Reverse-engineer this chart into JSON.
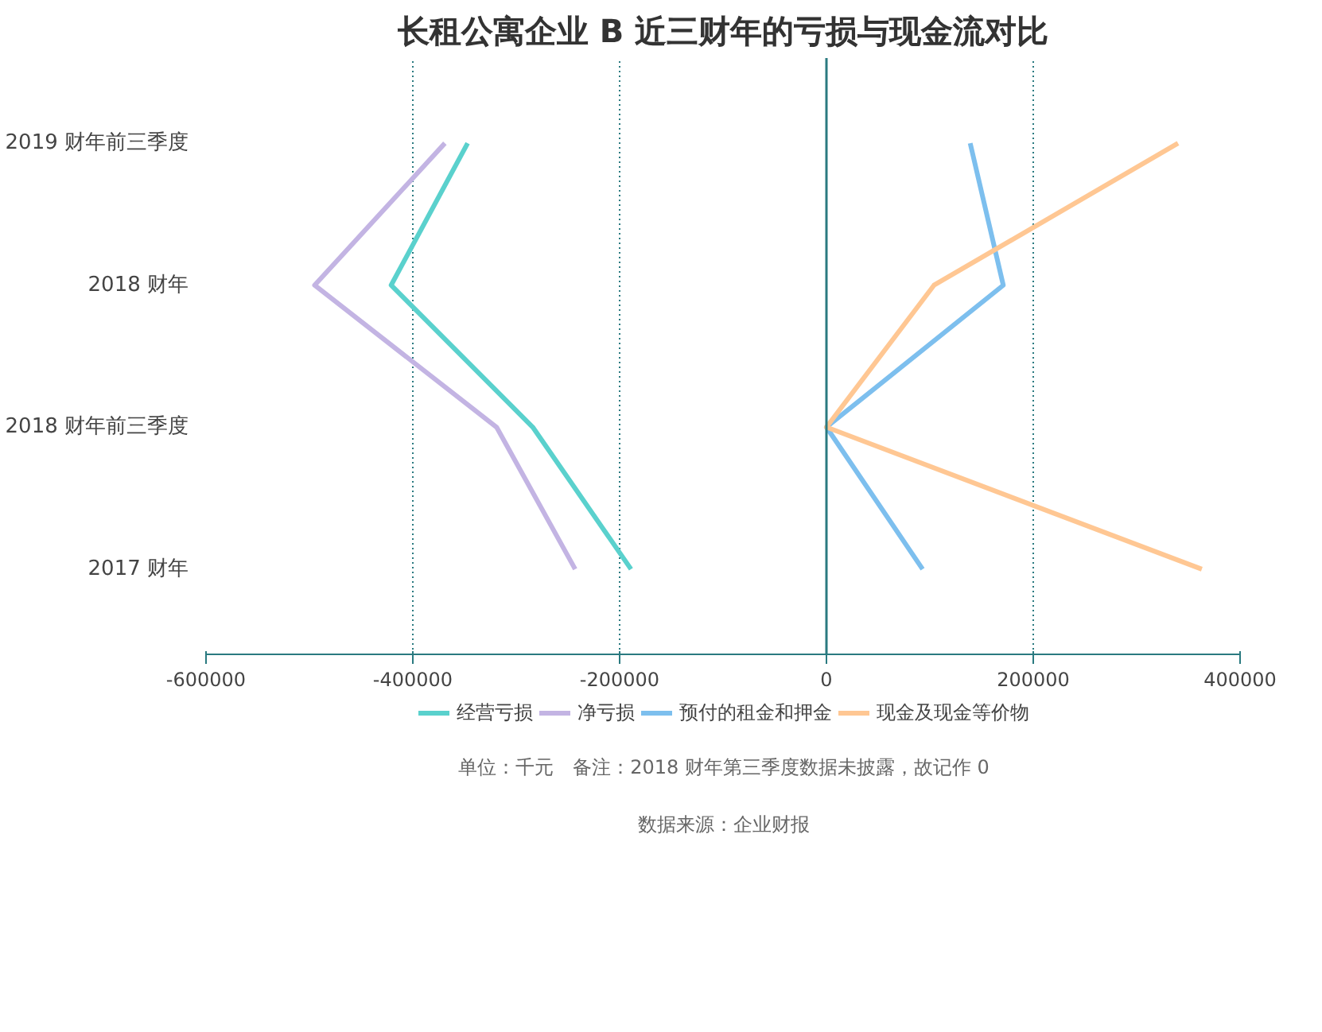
{
  "chart_data": {
    "type": "line",
    "orientation": "horizontal",
    "title": "长租公寓企业 B 近三财年的亏损与现金流对比",
    "categories": [
      "2019 财年前三季度",
      "2018 财年",
      "2018 财年前三季度",
      "2017 财年"
    ],
    "series": [
      {
        "name": "经营亏损",
        "color": "#5ad1cd",
        "values": [
          -347000,
          -421000,
          -284000,
          -189000
        ]
      },
      {
        "name": "净亏损",
        "color": "#c3b4e3",
        "values": [
          -369000,
          -495000,
          -319000,
          -243000
        ]
      },
      {
        "name": "预付的租金和押金",
        "color": "#7dbfee",
        "values": [
          139000,
          171000,
          0,
          93000
        ]
      },
      {
        "name": "现金及现金等价物",
        "color": "#ffc793",
        "values": [
          340000,
          104000,
          0,
          363000
        ]
      }
    ],
    "xlim": [
      -600000,
      400000
    ],
    "xticks": [
      -600000,
      -400000,
      -200000,
      0,
      200000,
      400000
    ],
    "ref_lines": [
      {
        "axis": "x",
        "value": 0,
        "color": "#2a7a80"
      }
    ],
    "grid": "x",
    "legend": "bottom",
    "marker": "none",
    "line_style": "solid",
    "annotations": [
      "单位：千元　备注：2018 财年第三季度数据未披露，故记作 0",
      "数据来源：企业财报"
    ]
  }
}
